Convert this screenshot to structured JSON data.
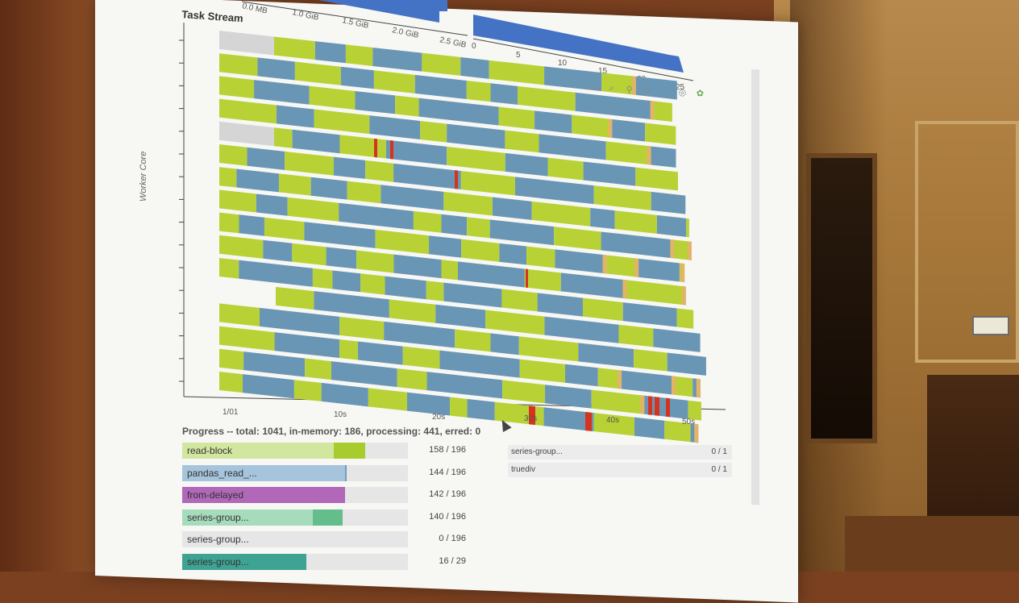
{
  "task_stream": {
    "title": "Task Stream",
    "ylabel": "Worker Core",
    "x_ticks": [
      "1/01",
      "10s",
      "20s",
      "30s",
      "40s",
      "50s"
    ],
    "colors": {
      "yellow": "#b8d236",
      "blue": "#6a96b6",
      "orange": "#e3b466",
      "red": "#d6331e",
      "gray": "#d5d5d5"
    }
  },
  "top_memory": {
    "labels": [
      "0.0 MB",
      "1.0 GiB",
      "1.5 GiB",
      "2.0 GiB",
      "2.5 GiB"
    ]
  },
  "top_hist": {
    "labels": [
      "0",
      "5",
      "10",
      "15",
      "20",
      "25"
    ]
  },
  "toolbar": {
    "icons": [
      "pan-icon",
      "zoom-icon",
      "wheel-zoom-icon",
      "reset-icon",
      "save-icon",
      "hover-icon",
      "bokeh-logo-icon"
    ]
  },
  "progress": {
    "title": "Progress -- total: 1041, in-memory: 186, processing: 441, erred: 0",
    "rows": [
      {
        "label": "read-block",
        "count": "158 / 196",
        "bg": "#d2e6a0",
        "fill": "#a8cc2e",
        "memory": 0.67,
        "done": 0.81
      },
      {
        "label": "pandas_read_...",
        "count": "144 / 196",
        "bg": "#a6c4dc",
        "fill": "#6e9ec0",
        "memory": 0.72,
        "done": 0.73
      },
      {
        "label": "from-delayed",
        "count": "142 / 196",
        "bg": "#b168b8",
        "fill": "#8e3a9a",
        "memory": 0.72,
        "done": 0.72
      },
      {
        "label": "series-group...",
        "count": "140 / 196",
        "bg": "#a6dcbc",
        "fill": "#63be8c",
        "memory": 0.58,
        "done": 0.71
      },
      {
        "label": "series-group...",
        "count": "0 / 196",
        "bg": "#d9d9d9",
        "fill": "#d9d9d9",
        "memory": 0,
        "done": 0
      },
      {
        "label": "series-group...",
        "count": "16 / 29",
        "bg": "#7ec2b6",
        "fill": "#3fa394",
        "memory": 0,
        "done": 0.55
      }
    ],
    "side_rows": [
      {
        "label": "series-group...",
        "count": "0 / 1"
      },
      {
        "label": "truediv",
        "count": "0 / 1"
      }
    ]
  }
}
